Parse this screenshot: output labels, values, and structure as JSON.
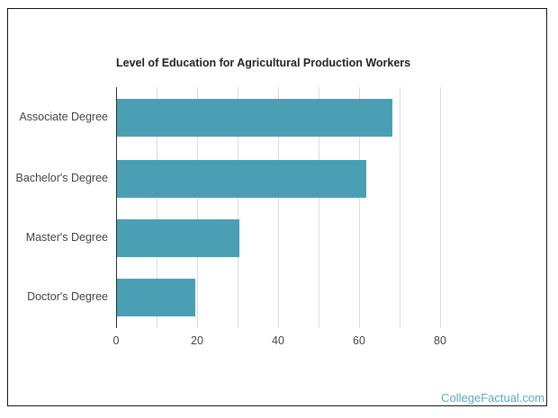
{
  "chart_data": {
    "type": "bar",
    "orientation": "horizontal",
    "title": "Level of Education for Agricultural Production Workers",
    "categories": [
      "Associate Degree",
      "Bachelor's Degree",
      "Master's Degree",
      "Doctor's Degree"
    ],
    "values": [
      68.3,
      61.8,
      30.4,
      19.6
    ],
    "xlabel": "",
    "ylabel": "",
    "xlim": [
      0,
      80
    ],
    "xticks": [
      0,
      20,
      40,
      60,
      80
    ],
    "grid": true,
    "grid_step": 10,
    "legend": null,
    "bar_color": "#4a9fb5"
  },
  "footer": {
    "link_text": "CollegeFactual.com"
  },
  "colors": {
    "bar": "#4a9fb5",
    "title": "#222222",
    "label": "#444444",
    "link": "#5aa9c1"
  }
}
